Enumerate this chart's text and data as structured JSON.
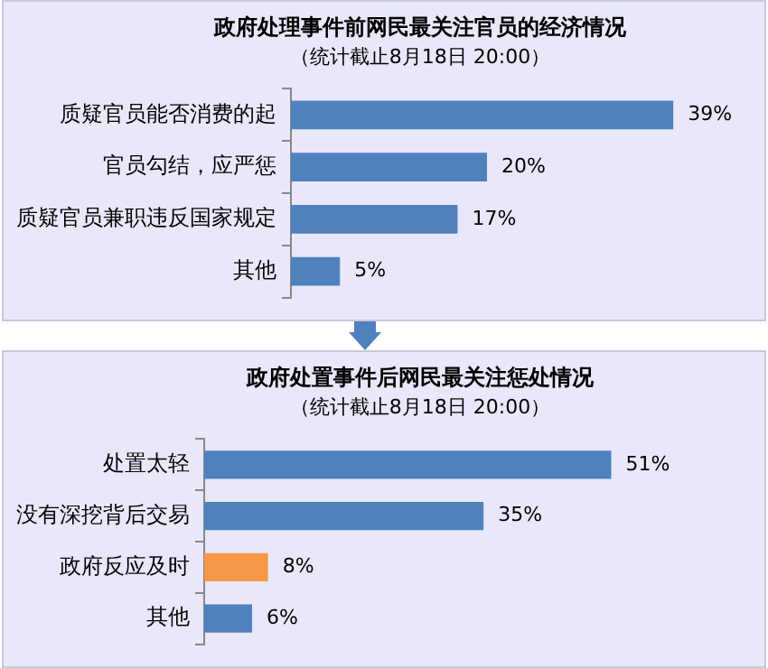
{
  "chart_data": [
    {
      "type": "bar",
      "orientation": "horizontal",
      "title": "政府处理事件前网民最关注官员的经济情况",
      "subtitle": "（统计截止8月18日 20:00）",
      "categories": [
        "质疑官员能否消费的起",
        "官员勾结，应严惩",
        "质疑官员兼职违反国家规定",
        "其他"
      ],
      "values": [
        39,
        20,
        17,
        5
      ],
      "color": "#4f81bd",
      "value_labels": [
        "39%",
        "20%",
        "17%",
        "5%"
      ],
      "legend": false,
      "tick_labels": "y"
    },
    {
      "type": "bar",
      "orientation": "horizontal",
      "title": "政府处置事件后网民最关注惩处情况",
      "subtitle": "（统计截止8月18日 20:00）",
      "categories": [
        "处置太轻",
        "没有深挖背后交易",
        "政府反应及时",
        "其他"
      ],
      "values": [
        51,
        35,
        8,
        6
      ],
      "colors": [
        "#4f81bd",
        "#4f81bd",
        "#f79646",
        "#4f81bd"
      ],
      "value_labels": [
        "51%",
        "35%",
        "8%",
        "6%"
      ],
      "legend": false,
      "tick_labels": "y"
    }
  ]
}
